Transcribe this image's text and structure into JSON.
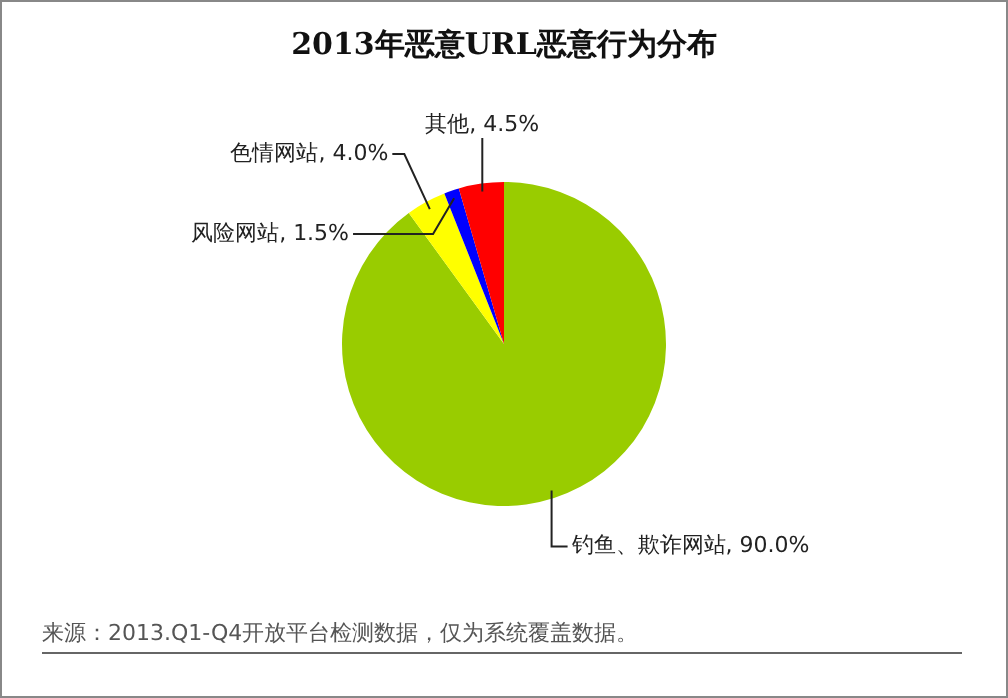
{
  "chart_data": {
    "type": "pie",
    "title": "2013年恶意URL恶意行为分布",
    "categories": [
      "钓鱼、欺诈网站",
      "色情网站",
      "风险网站",
      "其他"
    ],
    "values": [
      90,
      4,
      1.5,
      4.5
    ],
    "colors": [
      "#99cc00",
      "#ffff00",
      "#0000ff",
      "#ff0000"
    ],
    "value_labels": [
      "90.0%",
      "4.0%",
      "1.5%",
      "4.5%"
    ],
    "legend": false,
    "annotations": [
      "来源：2013.Q1-Q4开放平台检测数据，仅为系统覆盖数据。"
    ]
  }
}
